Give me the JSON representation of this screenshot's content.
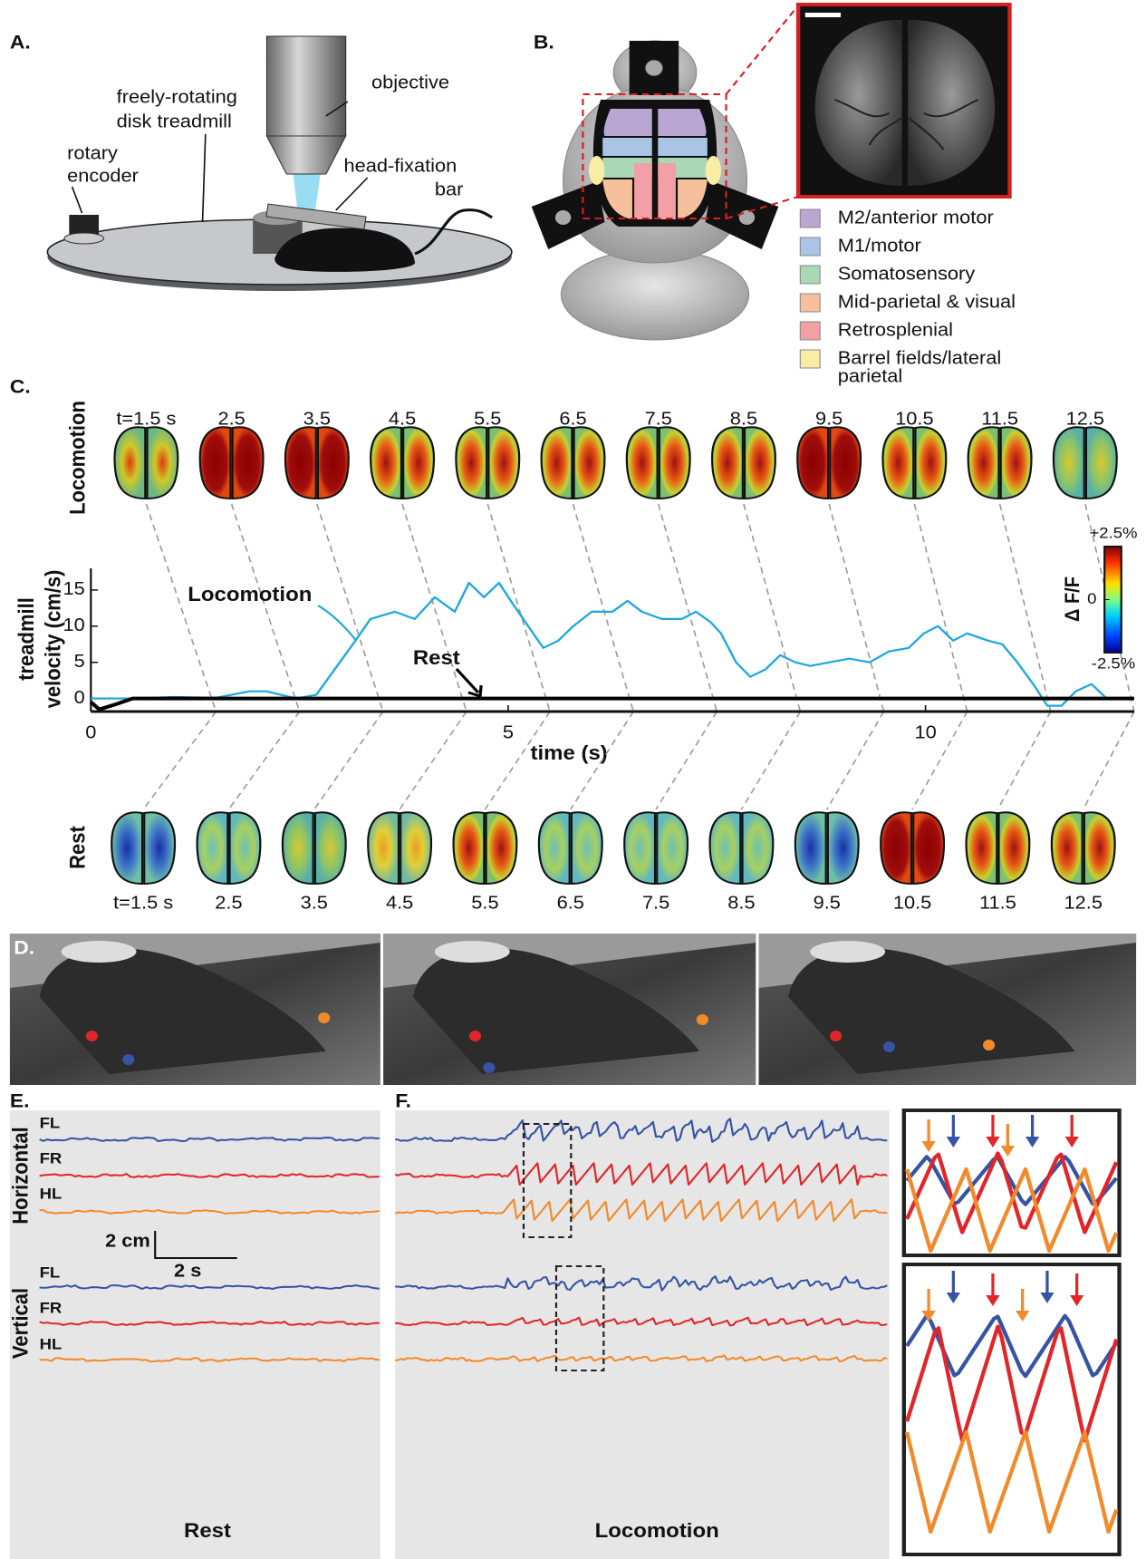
{
  "panels": {
    "A": {
      "label": "A.",
      "objective": "objective",
      "treadmill": [
        "freely-rotating",
        "disk treadmill"
      ],
      "encoder": [
        "rotary",
        "encoder"
      ],
      "headbar": [
        "head-fixation",
        "bar"
      ]
    },
    "B": {
      "label": "B.",
      "legend": [
        {
          "name": [
            "M2/anterior motor"
          ],
          "color": "#b9a6d3"
        },
        {
          "name": [
            "M1/motor"
          ],
          "color": "#a9c4e4"
        },
        {
          "name": [
            "Somatosensory"
          ],
          "color": "#a9d8b5"
        },
        {
          "name": [
            "Mid-parietal & visual"
          ],
          "color": "#f6c09c"
        },
        {
          "name": [
            "Retrosplenial"
          ],
          "color": "#f2a0a6"
        },
        {
          "name": [
            "Barrel fields/lateral",
            "parietal"
          ],
          "color": "#f8eda2"
        }
      ]
    },
    "C": {
      "label": "C.",
      "top_row_label": "Locomotion",
      "bottom_row_label": "Rest",
      "top_frames": [
        {
          "value": 1.5,
          "label": "t=1.5 s"
        },
        {
          "value": 2.5,
          "label": "2.5"
        },
        {
          "value": 3.5,
          "label": "3.5"
        },
        {
          "value": 4.5,
          "label": "4.5"
        },
        {
          "value": 5.5,
          "label": "5.5"
        },
        {
          "value": 6.5,
          "label": "6.5"
        },
        {
          "value": 7.5,
          "label": "7.5"
        },
        {
          "value": 8.5,
          "label": "8.5"
        },
        {
          "value": 9.5,
          "label": "9.5"
        },
        {
          "value": 10.5,
          "label": "10.5"
        },
        {
          "value": 11.5,
          "label": "11.5"
        },
        {
          "value": 12.5,
          "label": "12.5"
        }
      ],
      "bottom_frames": [
        {
          "value": 1.5,
          "label": "t=1.5 s"
        },
        {
          "value": 2.5,
          "label": "2.5"
        },
        {
          "value": 3.5,
          "label": "3.5"
        },
        {
          "value": 4.5,
          "label": "4.5"
        },
        {
          "value": 5.5,
          "label": "5.5"
        },
        {
          "value": 6.5,
          "label": "6.5"
        },
        {
          "value": 7.5,
          "label": "7.5"
        },
        {
          "value": 8.5,
          "label": "8.5"
        },
        {
          "value": 9.5,
          "label": "9.5"
        },
        {
          "value": 10.5,
          "label": "10.5"
        },
        {
          "value": 11.5,
          "label": "11.5"
        },
        {
          "value": 12.5,
          "label": "12.5"
        }
      ],
      "colorbar": {
        "title": "Δ F/F",
        "ticks": [
          {
            "value": 2.5,
            "label": "+2.5%"
          },
          0,
          {
            "value": -2.5,
            "label": "-2.5%"
          }
        ]
      }
    },
    "D": {
      "label": "D."
    },
    "E": {
      "label": "E.",
      "row_labels": [
        "Horizontal",
        "Vertical"
      ],
      "limbs_horizontal": [
        "FL",
        "FR",
        "HL"
      ],
      "limbs_vertical": [
        "FL",
        "FR",
        "HL"
      ],
      "scale_y": "2 cm",
      "scale_x": "2 s",
      "caption": "Rest"
    },
    "F": {
      "label": "F.",
      "caption": "Locomotion"
    }
  },
  "chart_data": {
    "type": "line",
    "xlabel": "time (s)",
    "ylabel": [
      "treadmill",
      "velocity (cm/s)"
    ],
    "xlim": [
      0,
      12.5
    ],
    "ylim": [
      -1.8,
      18
    ],
    "xticks": [
      0,
      5,
      10
    ],
    "yticks": [
      0,
      5,
      10,
      15
    ],
    "series": [
      {
        "name": "Locomotion",
        "color": "#1ba7e0",
        "x": [
          0,
          0.5,
          1,
          1.5,
          1.9,
          2.1,
          2.46,
          2.7,
          3.17,
          3.35,
          3.64,
          3.88,
          4.12,
          4.36,
          4.53,
          4.71,
          4.89,
          5.06,
          5.3,
          5.42,
          5.6,
          5.78,
          6,
          6.25,
          6.43,
          6.6,
          6.84,
          7.08,
          7.25,
          7.43,
          7.55,
          7.73,
          7.9,
          8.08,
          8.26,
          8.44,
          8.62,
          8.85,
          9.09,
          9.33,
          9.56,
          9.8,
          9.98,
          10.15,
          10.33,
          10.5,
          10.75,
          10.92,
          11.1,
          11.29,
          11.46,
          11.63,
          11.8,
          11.99,
          12.17,
          12.5
        ],
        "values": [
          0,
          0,
          0.2,
          0.1,
          1,
          1,
          0,
          0.5,
          8,
          11,
          12,
          11,
          14,
          12,
          16,
          14,
          16,
          13,
          9,
          7,
          8,
          10,
          12,
          12,
          13.5,
          12,
          11,
          11,
          12,
          10.5,
          9,
          5,
          3,
          4,
          6,
          5,
          4.5,
          5,
          5.5,
          5,
          6.5,
          7,
          9,
          10,
          8,
          9,
          8,
          7.5,
          5,
          2,
          -1,
          -1,
          1,
          2,
          0,
          0
        ]
      },
      {
        "name": "Rest",
        "color": "#000000",
        "x": [
          0,
          0.1,
          0.3,
          0.5,
          12.5
        ],
        "values": [
          -0.5,
          -1.5,
          -0.8,
          0,
          0
        ]
      }
    ]
  }
}
